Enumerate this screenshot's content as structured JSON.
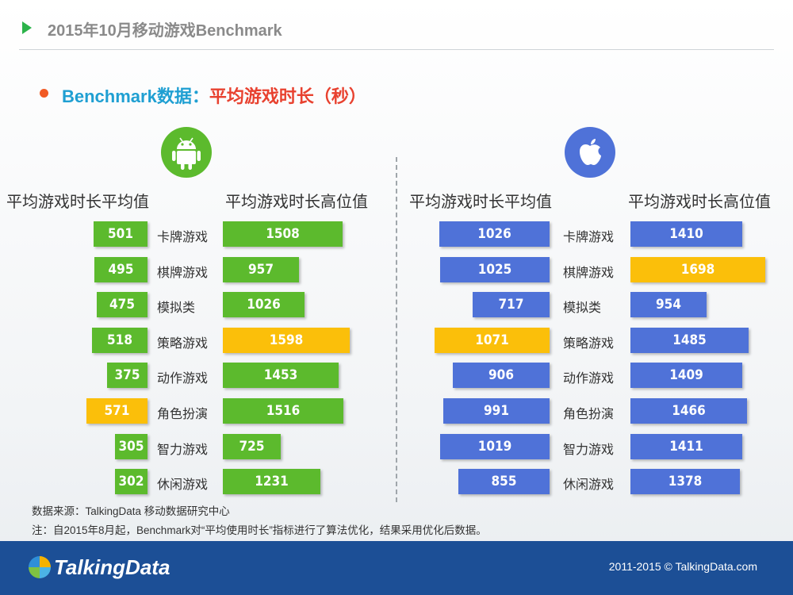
{
  "header": {
    "title": "2015年10月移动游戏Benchmark"
  },
  "subtitle": {
    "prefix": "Benchmark数据：",
    "highlight": "平均游戏时长（秒）"
  },
  "columns": {
    "avg": "平均游戏时长平均值",
    "high": "平均游戏时长高位值"
  },
  "colors": {
    "android": "#5cba2d",
    "ios": "#4f72d8",
    "highlight": "#fbbf0a",
    "title_accent": "#1f9fd2",
    "title_red": "#e8412f"
  },
  "icons": {
    "android": "android-icon",
    "ios": "apple-icon"
  },
  "chart_data": [
    {
      "type": "bar",
      "platform": "Android",
      "categories": [
        "卡牌游戏",
        "棋牌游戏",
        "模拟类",
        "策略游戏",
        "动作游戏",
        "角色扮演",
        "智力游戏",
        "休闲游戏"
      ],
      "series": [
        {
          "name": "平均游戏时长平均值",
          "values": [
            501,
            495,
            475,
            518,
            375,
            571,
            305,
            302
          ]
        },
        {
          "name": "平均游戏时长高位值",
          "values": [
            1508,
            957,
            1026,
            1598,
            1453,
            1516,
            725,
            1231
          ]
        }
      ],
      "highlight": {
        "avg": "角色扮演",
        "high": "策略游戏"
      }
    },
    {
      "type": "bar",
      "platform": "iOS",
      "categories": [
        "卡牌游戏",
        "棋牌游戏",
        "模拟类",
        "策略游戏",
        "动作游戏",
        "角色扮演",
        "智力游戏",
        "休闲游戏"
      ],
      "series": [
        {
          "name": "平均游戏时长平均值",
          "values": [
            1026,
            1025,
            717,
            1071,
            906,
            991,
            1019,
            855
          ]
        },
        {
          "name": "平均游戏时长高位值",
          "values": [
            1410,
            1698,
            954,
            1485,
            1409,
            1466,
            1411,
            1378
          ]
        }
      ],
      "highlight": {
        "avg": "策略游戏",
        "high": "棋牌游戏"
      }
    }
  ],
  "notes": {
    "source": "数据来源：TalkingData 移动数据研究中心",
    "note": "注：自2015年8月起，Benchmark对“平均使用时长”指标进行了算法优化，结果采用优化后数据。"
  },
  "footer": {
    "brand": "TalkingData",
    "copyright": "2011-2015 © TalkingData.com"
  }
}
